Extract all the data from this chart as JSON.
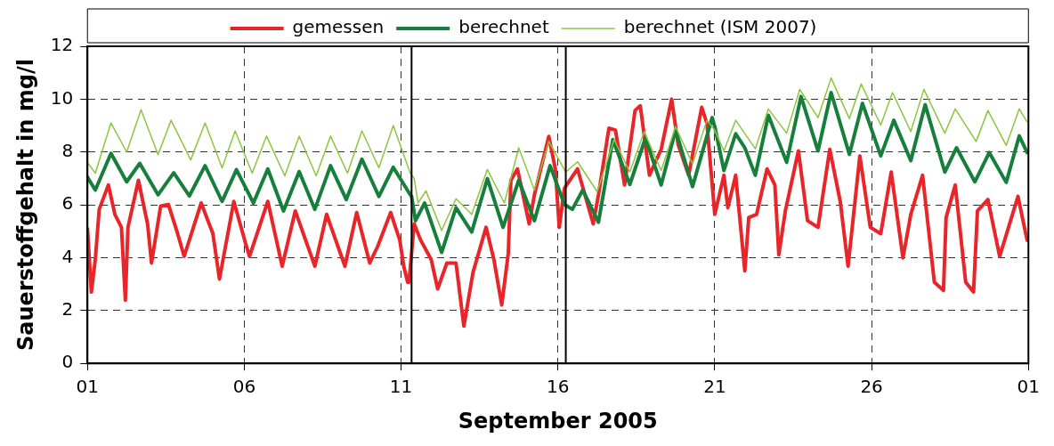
{
  "chart_data": {
    "type": "line",
    "xlabel": "September 2005",
    "ylabel": "Sauerstoffgehalt in mg/l",
    "xlim": [
      "2005-09-01",
      "2005-10-01"
    ],
    "xticks": [
      {
        "value": "2005-09-01",
        "label": "01"
      },
      {
        "value": "2005-09-06",
        "label": "06"
      },
      {
        "value": "2005-09-11",
        "label": "11"
      },
      {
        "value": "2005-09-16",
        "label": "16"
      },
      {
        "value": "2005-09-21",
        "label": "21"
      },
      {
        "value": "2005-09-26",
        "label": "26"
      },
      {
        "value": "2005-10-01",
        "label": "01"
      }
    ],
    "ylim": [
      0,
      12
    ],
    "yticks": [
      0,
      2,
      4,
      6,
      8,
      10,
      12
    ],
    "grid": true,
    "legend": "top",
    "marker": "none",
    "line_style": "solid",
    "ref_lines": [
      {
        "axis": "x",
        "value": "2005-09-11T08:00",
        "color": "#000000"
      },
      {
        "axis": "x",
        "value": "2005-09-16T06:00",
        "color": "#000000"
      }
    ],
    "series": [
      {
        "name": "gemessen",
        "color": "#e8262a",
        "x": [
          "2005-09-01T00:00",
          "2005-09-01T03:00",
          "2005-09-01T06:00",
          "2005-09-01T09:00",
          "2005-09-01T16:00",
          "2005-09-01T21:00",
          "2005-09-02T02:00",
          "2005-09-02T05:00",
          "2005-09-02T07:00",
          "2005-09-02T15:00",
          "2005-09-02T22:00",
          "2005-09-03T01:00",
          "2005-09-03T08:00",
          "2005-09-03T14:00",
          "2005-09-03T21:00",
          "2005-09-04T02:00",
          "2005-09-04T15:00",
          "2005-09-05T00:00",
          "2005-09-05T05:00",
          "2005-09-05T16:00",
          "2005-09-06T01:00",
          "2005-09-06T04:00",
          "2005-09-06T18:00",
          "2005-09-07T05:00",
          "2005-09-07T15:00",
          "2005-09-08T06:00",
          "2005-09-08T15:00",
          "2005-09-09T05:00",
          "2005-09-09T14:00",
          "2005-09-10T00:00",
          "2005-09-10T06:00",
          "2005-09-10T16:00",
          "2005-09-10T23:00",
          "2005-09-11T02:00",
          "2005-09-11T05:00",
          "2005-09-11T06:00",
          "2005-09-11T10:00",
          "2005-09-11T15:00",
          "2005-09-11T23:00",
          "2005-09-12T04:00",
          "2005-09-12T11:00",
          "2005-09-12T18:00",
          "2005-09-13T00:00",
          "2005-09-13T07:00",
          "2005-09-13T17:00",
          "2005-09-13T23:00",
          "2005-09-14T05:00",
          "2005-09-14T10:00",
          "2005-09-14T12:00",
          "2005-09-14T17:00",
          "2005-09-15T02:00",
          "2005-09-15T06:00",
          "2005-09-15T17:00",
          "2005-09-15T22:00",
          "2005-09-16T01:00",
          "2005-09-16T05:00",
          "2005-09-16T15:00",
          "2005-09-17T03:00",
          "2005-09-17T07:00",
          "2005-09-17T15:00",
          "2005-09-17T20:00",
          "2005-09-18T03:00",
          "2005-09-18T11:00",
          "2005-09-18T15:00",
          "2005-09-18T22:00",
          "2005-09-19T07:00",
          "2005-09-19T15:00",
          "2005-09-19T20:00",
          "2005-09-20T04:00",
          "2005-09-20T14:00",
          "2005-09-20T18:00",
          "2005-09-21T00:00",
          "2005-09-21T07:00",
          "2005-09-21T10:00",
          "2005-09-21T16:00",
          "2005-09-21T23:00",
          "2005-09-22T02:00",
          "2005-09-22T08:00",
          "2005-09-22T16:00",
          "2005-09-22T22:00",
          "2005-09-23T01:00",
          "2005-09-23T06:00",
          "2005-09-23T16:00",
          "2005-09-23T23:00",
          "2005-09-24T07:00",
          "2005-09-24T16:00",
          "2005-09-25T00:00",
          "2005-09-25T06:00",
          "2005-09-25T15:00",
          "2005-09-25T23:00",
          "2005-09-26T07:00",
          "2005-09-26T15:00",
          "2005-09-27T00:00",
          "2005-09-27T06:00",
          "2005-09-27T15:00",
          "2005-09-28T00:00",
          "2005-09-28T07:00",
          "2005-09-28T09:00",
          "2005-09-28T16:00",
          "2005-09-29T00:00",
          "2005-09-29T06:00",
          "2005-09-29T09:00",
          "2005-09-29T17:00",
          "2005-09-30T02:00",
          "2005-09-30T16:00",
          "2005-09-30T23:00"
        ],
        "values": [
          5.09,
          2.7,
          3.93,
          5.83,
          6.75,
          5.64,
          5.15,
          2.39,
          5.15,
          6.93,
          5.28,
          3.8,
          5.95,
          6.01,
          4.91,
          4.05,
          6.07,
          4.91,
          3.19,
          6.13,
          4.54,
          4.05,
          6.13,
          3.68,
          5.77,
          3.68,
          5.64,
          3.68,
          5.71,
          3.8,
          4.42,
          5.71,
          4.66,
          3.68,
          3.07,
          3.07,
          5.28,
          4.66,
          3.93,
          2.82,
          3.8,
          3.8,
          1.41,
          3.44,
          5.15,
          3.93,
          2.21,
          4.17,
          6.93,
          7.36,
          5.28,
          6.38,
          8.59,
          7.36,
          5.15,
          6.63,
          7.36,
          5.28,
          6.38,
          8.9,
          8.83,
          6.75,
          9.57,
          9.75,
          7.12,
          8.1,
          10,
          8.28,
          7.12,
          9.69,
          9.08,
          5.64,
          7.12,
          5.89,
          7.12,
          3.5,
          5.52,
          5.64,
          7.36,
          6.75,
          4.11,
          5.77,
          8.04,
          5.4,
          5.15,
          8.1,
          6.13,
          3.68,
          7.85,
          5.15,
          4.91,
          7.24,
          3.99,
          5.64,
          7.12,
          3.07,
          2.76,
          5.52,
          6.75,
          3.07,
          2.7,
          5.77,
          6.2,
          4.05,
          6.32,
          4.66
        ]
      },
      {
        "name": "berechnet",
        "color": "#157f3b",
        "x": [
          "2005-09-01T00:00",
          "2005-09-01T06:00",
          "2005-09-01T18:00",
          "2005-09-02T06:00",
          "2005-09-02T16:00",
          "2005-09-03T06:00",
          "2005-09-03T18:00",
          "2005-09-04T06:00",
          "2005-09-04T18:00",
          "2005-09-05T07:00",
          "2005-09-05T18:00",
          "2005-09-06T07:00",
          "2005-09-06T18:00",
          "2005-09-07T06:00",
          "2005-09-07T18:00",
          "2005-09-08T06:00",
          "2005-09-08T18:00",
          "2005-09-09T06:00",
          "2005-09-09T18:00",
          "2005-09-10T07:00",
          "2005-09-10T18:00",
          "2005-09-11T07:00",
          "2005-09-11T08:00",
          "2005-09-11T11:00",
          "2005-09-11T18:00",
          "2005-09-12T07:00",
          "2005-09-12T18:00",
          "2005-09-13T06:00",
          "2005-09-13T18:00",
          "2005-09-14T06:00",
          "2005-09-14T18:00",
          "2005-09-15T06:00",
          "2005-09-15T18:00",
          "2005-09-16T05:00",
          "2005-09-16T11:00",
          "2005-09-16T19:00",
          "2005-09-17T07:00",
          "2005-09-17T18:00",
          "2005-09-18T07:00",
          "2005-09-18T19:00",
          "2005-09-19T07:00",
          "2005-09-19T18:00",
          "2005-09-20T07:00",
          "2005-09-20T22:00",
          "2005-09-21T00:00",
          "2005-09-21T07:00",
          "2005-09-21T16:00",
          "2005-09-21T23:00",
          "2005-09-22T07:00",
          "2005-09-22T17:00",
          "2005-09-23T07:00",
          "2005-09-23T18:00",
          "2005-09-24T07:00",
          "2005-09-24T17:00",
          "2005-09-25T07:00",
          "2005-09-25T17:00",
          "2005-09-26T07:00",
          "2005-09-26T17:00",
          "2005-09-27T06:00",
          "2005-09-27T17:00",
          "2005-09-28T08:00",
          "2005-09-28T17:00",
          "2005-09-29T07:00",
          "2005-09-29T18:00",
          "2005-09-30T07:00",
          "2005-09-30T17:00",
          "2005-09-30T23:00"
        ],
        "values": [
          7.05,
          6.56,
          7.95,
          6.87,
          7.57,
          6.38,
          7.21,
          6.34,
          7.48,
          6.13,
          7.33,
          6.07,
          7.36,
          5.77,
          7.26,
          5.83,
          7.48,
          6.2,
          7.73,
          6.32,
          7.42,
          6.38,
          6.32,
          5.4,
          6.07,
          4.2,
          5.89,
          4.97,
          6.99,
          5.15,
          6.93,
          5.4,
          7.48,
          6.01,
          5.83,
          6.56,
          5.34,
          8.47,
          6.77,
          8.53,
          6.75,
          8.83,
          6.69,
          9.3,
          8.96,
          7.3,
          8.69,
          8.16,
          7.12,
          9.39,
          7.61,
          10.1,
          8.04,
          10.25,
          7.91,
          9.84,
          7.85,
          9.2,
          7.67,
          9.79,
          7.24,
          8.16,
          6.87,
          7.98,
          6.85,
          8.61,
          7.98
        ]
      },
      {
        "name": "berechnet (ISM 2007)",
        "color": "#8cc63f",
        "x": [
          "2005-09-01T00:00",
          "2005-09-01T06:00",
          "2005-09-01T18:00",
          "2005-09-02T06:00",
          "2005-09-02T17:00",
          "2005-09-03T06:00",
          "2005-09-03T16:00",
          "2005-09-04T07:00",
          "2005-09-04T18:00",
          "2005-09-05T07:00",
          "2005-09-05T17:00",
          "2005-09-06T06:00",
          "2005-09-06T17:00",
          "2005-09-07T07:00",
          "2005-09-07T18:00",
          "2005-09-08T07:00",
          "2005-09-08T18:00",
          "2005-09-09T07:00",
          "2005-09-09T18:00",
          "2005-09-10T07:00",
          "2005-09-10T18:00",
          "2005-09-11T07:00",
          "2005-09-11T10:00",
          "2005-09-11T13:00",
          "2005-09-11T19:00",
          "2005-09-12T07:00",
          "2005-09-12T18:00",
          "2005-09-13T06:00",
          "2005-09-13T18:00",
          "2005-09-14T07:00",
          "2005-09-14T18:00",
          "2005-09-15T06:00",
          "2005-09-15T17:00",
          "2005-09-16T06:00",
          "2005-09-16T15:00",
          "2005-09-17T06:00",
          "2005-09-17T19:00",
          "2005-09-18T07:00",
          "2005-09-18T18:00",
          "2005-09-19T07:00",
          "2005-09-19T18:00",
          "2005-09-20T07:00",
          "2005-09-20T18:00",
          "2005-09-21T00:00",
          "2005-09-21T07:00",
          "2005-09-21T16:00",
          "2005-09-22T07:00",
          "2005-09-22T17:00",
          "2005-09-23T07:00",
          "2005-09-23T17:00",
          "2005-09-24T07:00",
          "2005-09-24T17:00",
          "2005-09-25T07:00",
          "2005-09-25T16:00",
          "2005-09-26T07:00",
          "2005-09-26T16:00",
          "2005-09-27T06:00",
          "2005-09-27T16:00",
          "2005-09-28T08:00",
          "2005-09-28T16:00",
          "2005-09-29T08:00",
          "2005-09-29T17:00",
          "2005-09-30T07:00",
          "2005-09-30T17:00",
          "2005-09-30T23:00"
        ],
        "values": [
          7.6,
          7.2,
          9.1,
          8,
          9.6,
          7.9,
          9.2,
          7.7,
          9.1,
          7.4,
          8.8,
          7.2,
          8.6,
          7.1,
          8.6,
          7.1,
          8.6,
          7.2,
          8.8,
          7.4,
          9,
          7.2,
          7,
          6.07,
          6.53,
          5.03,
          6.23,
          5.64,
          7.34,
          6.07,
          8.16,
          6.56,
          8.4,
          7.24,
          7.63,
          6.5,
          8.47,
          7.24,
          8.77,
          7.3,
          8.96,
          7.55,
          9.2,
          8.83,
          8.04,
          9.2,
          8.12,
          9.63,
          8.71,
          10.37,
          9.3,
          10.8,
          9.26,
          10.58,
          9.02,
          10.25,
          8.77,
          10.37,
          8.71,
          9.63,
          8.4,
          9.57,
          8.25,
          9.63,
          9.14
        ]
      }
    ]
  }
}
